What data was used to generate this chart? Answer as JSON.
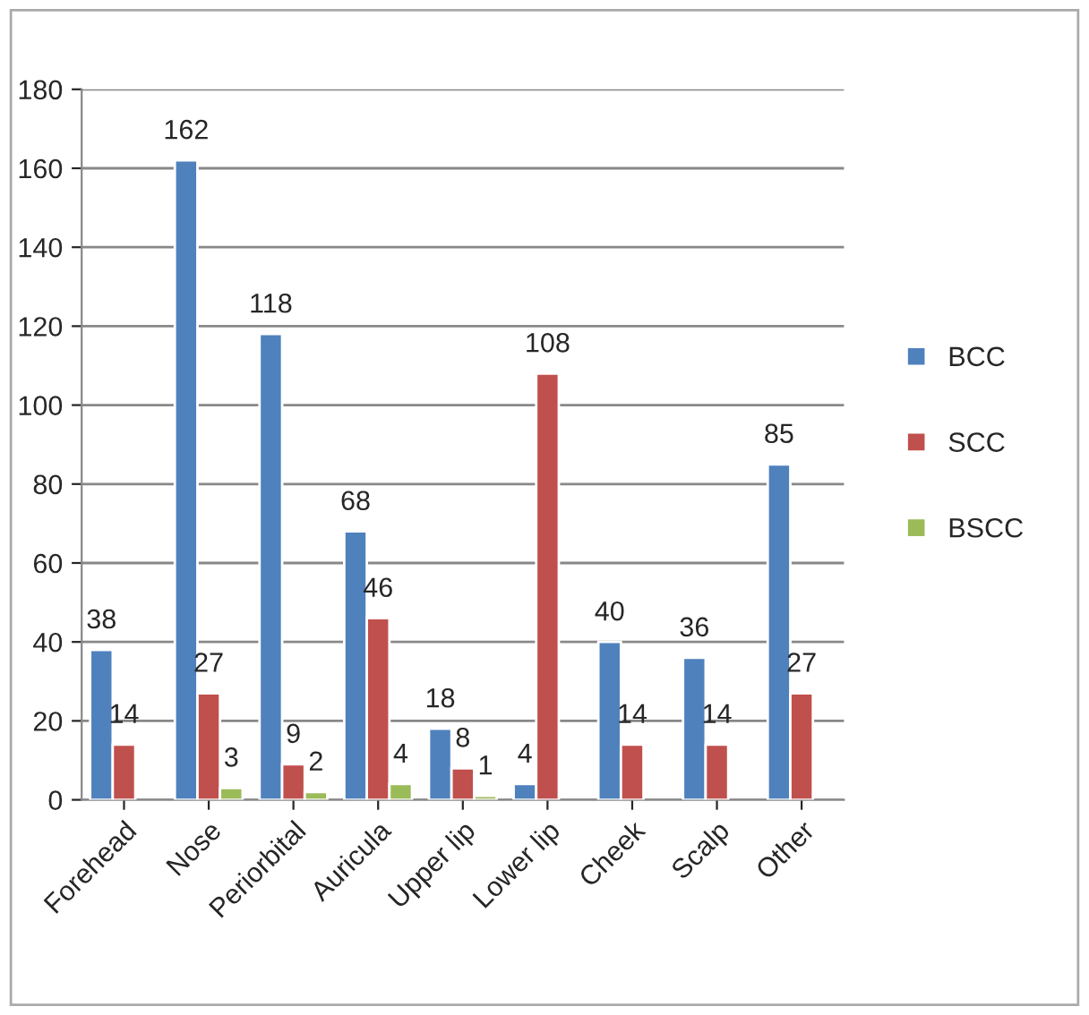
{
  "chart_data": {
    "type": "bar",
    "categories": [
      "Forehead",
      "Nose",
      "Periorbital",
      "Auricula",
      "Upper lip",
      "Lower lip",
      "Cheek",
      "Scalp",
      "Other"
    ],
    "series": [
      {
        "name": "BCC",
        "color": "#4f81bd",
        "values": [
          38,
          162,
          118,
          68,
          18,
          4,
          40,
          36,
          85
        ]
      },
      {
        "name": "SCC",
        "color": "#c0504d",
        "values": [
          14,
          27,
          9,
          46,
          8,
          108,
          14,
          14,
          27
        ]
      },
      {
        "name": "BSCC",
        "color": "#9bbb59",
        "values": [
          null,
          3,
          2,
          4,
          1,
          null,
          null,
          null,
          null
        ]
      }
    ],
    "ylim": [
      0,
      180
    ],
    "yticks": [
      0,
      20,
      40,
      60,
      80,
      100,
      120,
      140,
      160,
      180
    ],
    "grid": "y",
    "legend": "right",
    "data_labels": true
  }
}
